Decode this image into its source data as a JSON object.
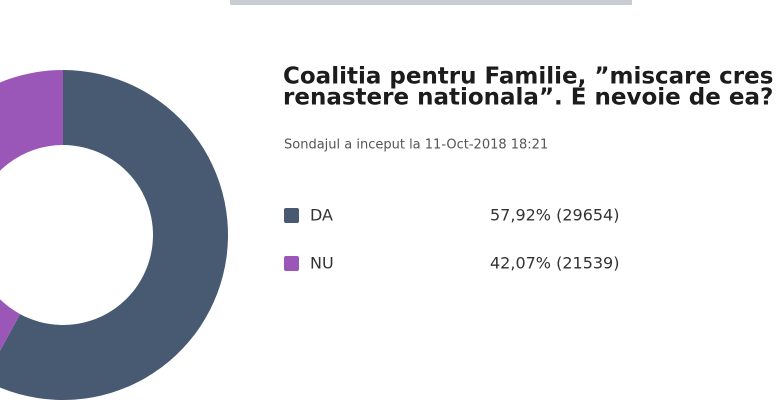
{
  "chart_data": {
    "type": "donut",
    "title_lines": [
      "Coalitia pentru Familie, ”miscare cres",
      "renastere nationala”. E nevoie de ea?"
    ],
    "subtitle": "Sondajul a inceput la 11-Oct-2018 18:21",
    "categories": [
      "DA",
      "NU"
    ],
    "values": [
      57.92,
      42.07
    ],
    "value_labels": [
      "57,92% (29654)",
      "42,07% (21539)"
    ],
    "colors": [
      "#475a72",
      "#9b57b8"
    ]
  }
}
